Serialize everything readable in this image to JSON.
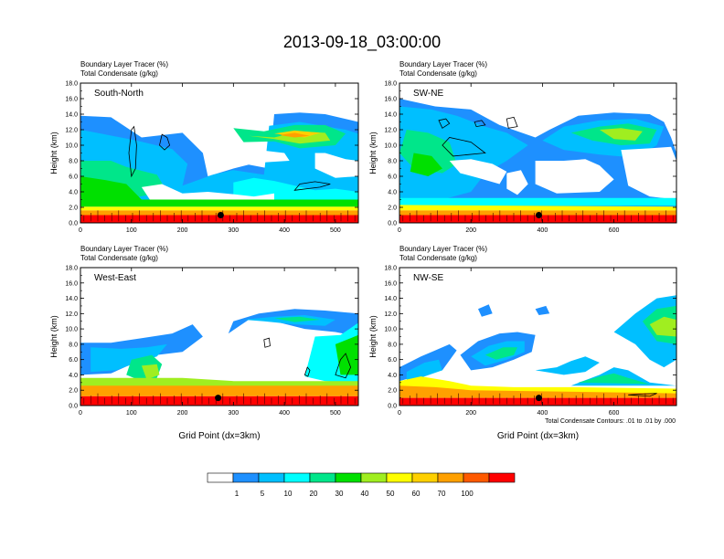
{
  "figure": {
    "title": "2013-09-18_03:00:00",
    "contour_note": "Total Condensate Contours: .01 to .01 by .000"
  },
  "colorbar": {
    "labels": [
      "1",
      "5",
      "10",
      "20",
      "30",
      "40",
      "50",
      "60",
      "70",
      "100"
    ],
    "colors": [
      "#ffffff",
      "#1e90ff",
      "#00bfff",
      "#00ffff",
      "#00e68a",
      "#00e000",
      "#a0ee20",
      "#ffff00",
      "#ffd000",
      "#ffa000",
      "#ff5a00",
      "#ff0000"
    ]
  },
  "chart_data": [
    {
      "type": "heatmap",
      "panel": "South-North",
      "subtitle_lines": [
        "Boundary Layer Tracer   (%)",
        "Total Condensate   (g/kg)"
      ],
      "ylabel": "Height (km)",
      "xlabel": "",
      "ylim": [
        0,
        18
      ],
      "yticks": [
        "0.0",
        "2.0",
        "4.0",
        "6.0",
        "8.0",
        "10.0",
        "12.0",
        "14.0",
        "16.0",
        "18.0"
      ],
      "xlim": [
        0,
        545
      ],
      "xticks": [
        0,
        100,
        200,
        300,
        400,
        500
      ],
      "marker": {
        "x": 275,
        "y": 1.0
      }
    },
    {
      "type": "heatmap",
      "panel": "SW-NE",
      "subtitle_lines": [
        "Boundary Layer Tracer   (%)",
        "Total Condensate   (g/kg)"
      ],
      "ylabel": "Height (km)",
      "xlabel": "",
      "ylim": [
        0,
        18
      ],
      "yticks": [
        "0.0",
        "2.0",
        "4.0",
        "6.0",
        "8.0",
        "10.0",
        "12.0",
        "14.0",
        "16.0",
        "18.0"
      ],
      "xlim": [
        0,
        775
      ],
      "xticks": [
        0,
        200,
        400,
        600
      ],
      "marker": {
        "x": 390,
        "y": 1.0
      }
    },
    {
      "type": "heatmap",
      "panel": "West-East",
      "subtitle_lines": [
        "Boundary Layer Tracer   (%)",
        "Total Condensate   (g/kg)"
      ],
      "ylabel": "Height (km)",
      "xlabel": "Grid Point (dx=3km)",
      "ylim": [
        0,
        18
      ],
      "yticks": [
        "0.0",
        "2.0",
        "4.0",
        "6.0",
        "8.0",
        "10.0",
        "12.0",
        "14.0",
        "16.0",
        "18.0"
      ],
      "xlim": [
        0,
        545
      ],
      "xticks": [
        0,
        100,
        200,
        300,
        400,
        500
      ],
      "marker": {
        "x": 270,
        "y": 1.0
      }
    },
    {
      "type": "heatmap",
      "panel": "NW-SE",
      "subtitle_lines": [
        "Boundary Layer Tracer   (%)",
        "Total Condensate   (g/kg)"
      ],
      "ylabel": "Height (km)",
      "xlabel": "Grid Point (dx=3km)",
      "ylim": [
        0,
        18
      ],
      "yticks": [
        "0.0",
        "2.0",
        "4.0",
        "6.0",
        "8.0",
        "10.0",
        "12.0",
        "14.0",
        "16.0",
        "18.0"
      ],
      "xlim": [
        0,
        775
      ],
      "xticks": [
        0,
        200,
        400,
        600
      ],
      "marker": {
        "x": 390,
        "y": 1.0
      }
    }
  ]
}
